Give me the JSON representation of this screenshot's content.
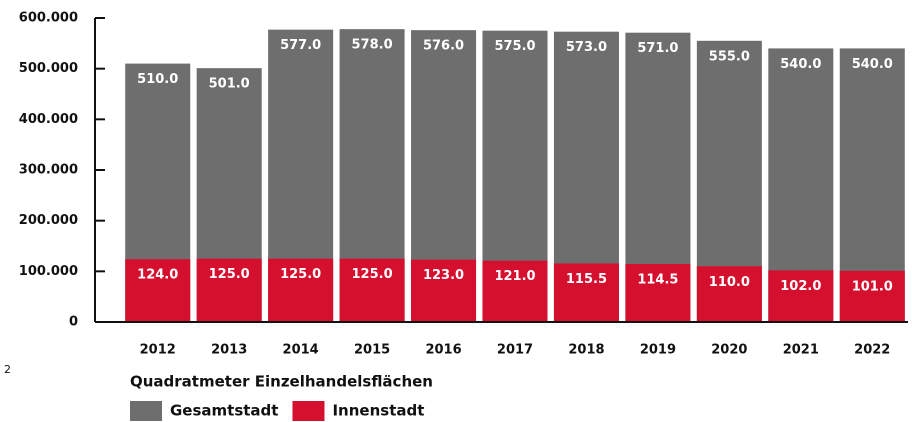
{
  "chart_data": {
    "type": "bar",
    "mode": "overlay",
    "categories": [
      "2012",
      "2013",
      "2014",
      "2015",
      "2016",
      "2017",
      "2018",
      "2019",
      "2020",
      "2021",
      "2022"
    ],
    "series": [
      {
        "name": "Gesamtstadt",
        "color": "#6e6e6e",
        "values": [
          510000,
          501000,
          577000,
          578000,
          576000,
          575000,
          573000,
          571000,
          555000,
          540000,
          540000
        ],
        "value_labels": [
          "510.0",
          "501.0",
          "577.0",
          "578.0",
          "576.0",
          "575.0",
          "573.0",
          "571.0",
          "555.0",
          "540.0",
          "540.0"
        ]
      },
      {
        "name": "Innenstadt",
        "color": "#d5102f",
        "values": [
          124000,
          125000,
          125000,
          125000,
          123000,
          121000,
          115500,
          114500,
          110000,
          102000,
          101000
        ],
        "value_labels": [
          "124.0",
          "125.0",
          "125.0",
          "125.0",
          "123.0",
          "121.0",
          "115.5",
          "114.5",
          "110.0",
          "102.0",
          "101.0"
        ]
      }
    ],
    "ylim": [
      0,
      600000
    ],
    "yticks": [
      0,
      {
        "value": 100000,
        "label": "100.000"
      },
      {
        "value": 200000,
        "label": "200.000"
      },
      {
        "value": 300000,
        "label": "300.000"
      },
      {
        "value": 400000,
        "label": "400.000"
      },
      {
        "value": 500000,
        "label": "500.000"
      },
      {
        "value": 600000,
        "label": "600.000"
      }
    ],
    "legend_title": "Quadratmeter Einzelhandelsflächen",
    "fragment": "2"
  }
}
